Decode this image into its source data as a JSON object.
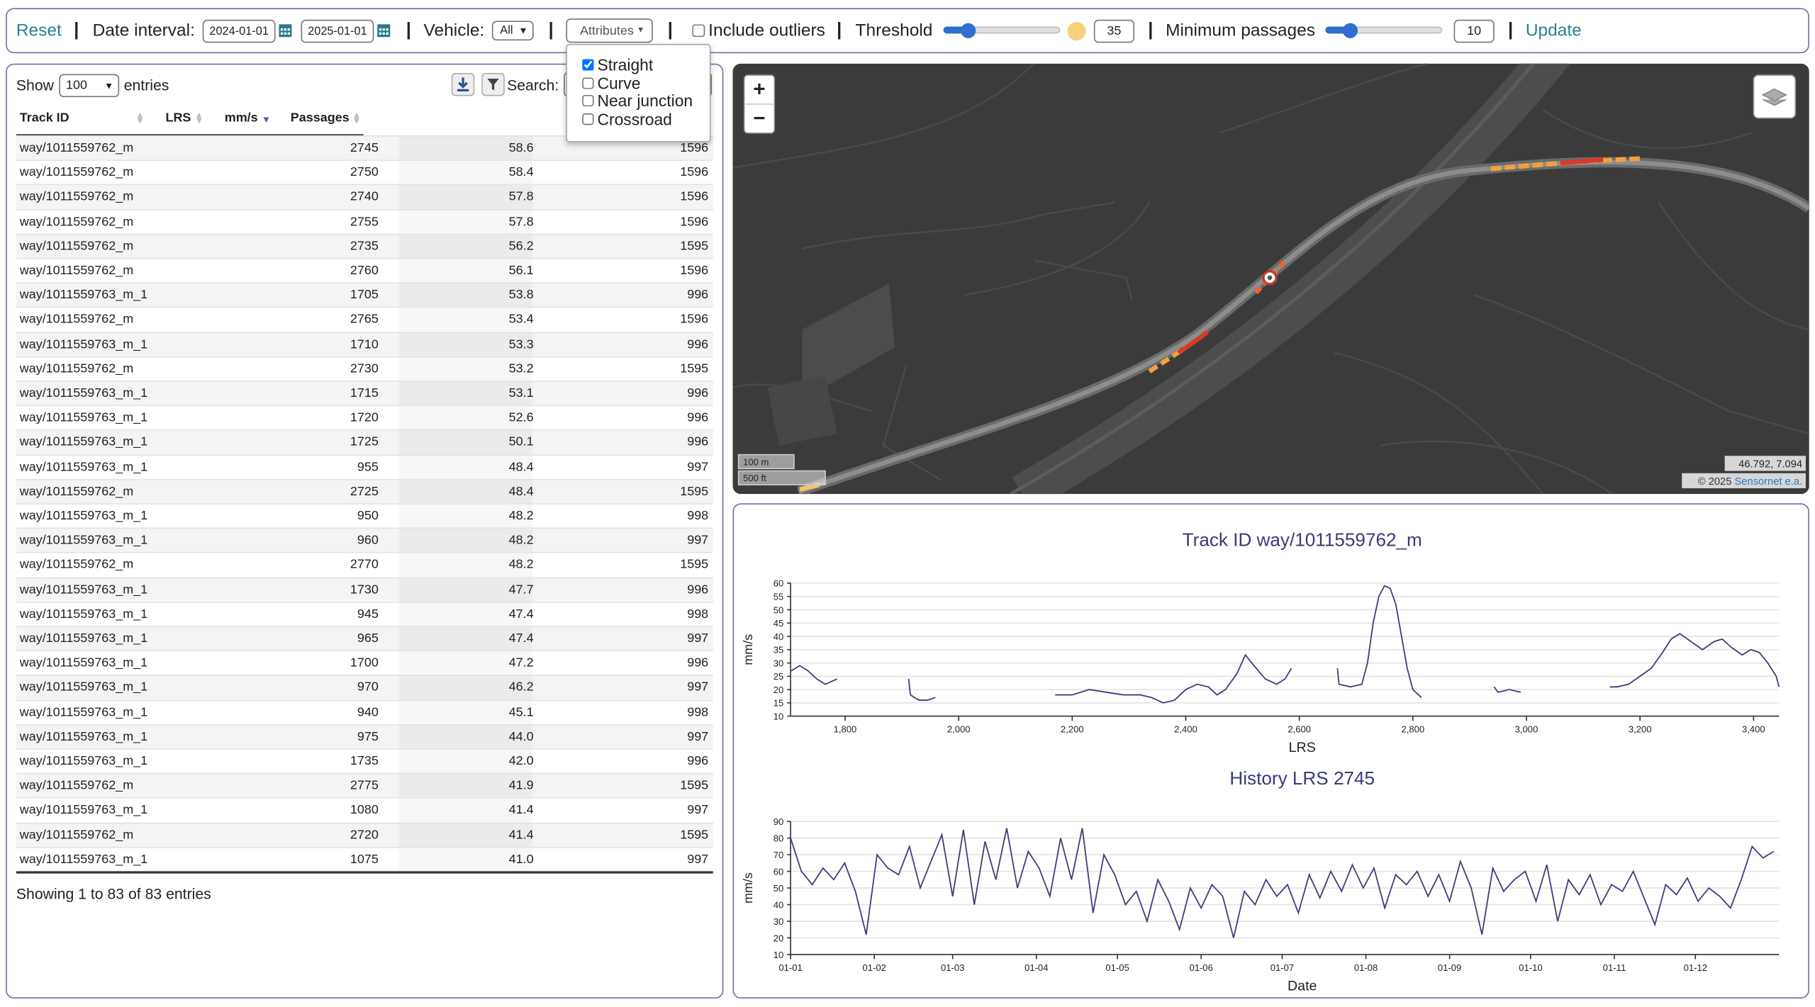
{
  "toolbar": {
    "reset": "Reset",
    "date_label": "Date interval:",
    "date_from": "2024-01-01",
    "date_to": "2025-01-01",
    "vehicle_label": "Vehicle:",
    "vehicle_value": "All",
    "attributes_button": "Attributes",
    "include_outliers": {
      "label": "Include outliers",
      "checked": false
    },
    "threshold_label": "Threshold",
    "threshold_value": "35",
    "min_passages_label": "Minimum passages",
    "min_passages_value": "10",
    "update": "Update"
  },
  "attributes_menu": {
    "options": [
      {
        "label": "Straight",
        "checked": true
      },
      {
        "label": "Curve",
        "checked": false
      },
      {
        "label": "Near junction",
        "checked": false
      },
      {
        "label": "Crossroad",
        "checked": false
      }
    ]
  },
  "table": {
    "show_label": "Show",
    "page_size": "100",
    "entries_label": "entries",
    "search_label": "Search:",
    "columns": [
      "Track ID",
      "LRS",
      "mm/s",
      "Passages"
    ],
    "rows": [
      [
        "way/1011559762_m",
        "2745",
        "58.6",
        "1596"
      ],
      [
        "way/1011559762_m",
        "2750",
        "58.4",
        "1596"
      ],
      [
        "way/1011559762_m",
        "2740",
        "57.8",
        "1596"
      ],
      [
        "way/1011559762_m",
        "2755",
        "57.8",
        "1596"
      ],
      [
        "way/1011559762_m",
        "2735",
        "56.2",
        "1595"
      ],
      [
        "way/1011559762_m",
        "2760",
        "56.1",
        "1596"
      ],
      [
        "way/1011559763_m_1",
        "1705",
        "53.8",
        "996"
      ],
      [
        "way/1011559762_m",
        "2765",
        "53.4",
        "1596"
      ],
      [
        "way/1011559763_m_1",
        "1710",
        "53.3",
        "996"
      ],
      [
        "way/1011559762_m",
        "2730",
        "53.2",
        "1595"
      ],
      [
        "way/1011559763_m_1",
        "1715",
        "53.1",
        "996"
      ],
      [
        "way/1011559763_m_1",
        "1720",
        "52.6",
        "996"
      ],
      [
        "way/1011559763_m_1",
        "1725",
        "50.1",
        "996"
      ],
      [
        "way/1011559763_m_1",
        "955",
        "48.4",
        "997"
      ],
      [
        "way/1011559762_m",
        "2725",
        "48.4",
        "1595"
      ],
      [
        "way/1011559763_m_1",
        "950",
        "48.2",
        "998"
      ],
      [
        "way/1011559763_m_1",
        "960",
        "48.2",
        "997"
      ],
      [
        "way/1011559762_m",
        "2770",
        "48.2",
        "1595"
      ],
      [
        "way/1011559763_m_1",
        "1730",
        "47.7",
        "996"
      ],
      [
        "way/1011559763_m_1",
        "945",
        "47.4",
        "998"
      ],
      [
        "way/1011559763_m_1",
        "965",
        "47.4",
        "997"
      ],
      [
        "way/1011559763_m_1",
        "1700",
        "47.2",
        "996"
      ],
      [
        "way/1011559763_m_1",
        "970",
        "46.2",
        "997"
      ],
      [
        "way/1011559763_m_1",
        "940",
        "45.1",
        "998"
      ],
      [
        "way/1011559763_m_1",
        "975",
        "44.0",
        "997"
      ],
      [
        "way/1011559763_m_1",
        "1735",
        "42.0",
        "996"
      ],
      [
        "way/1011559762_m",
        "2775",
        "41.9",
        "1595"
      ],
      [
        "way/1011559763_m_1",
        "1080",
        "41.4",
        "997"
      ],
      [
        "way/1011559762_m",
        "2720",
        "41.4",
        "1595"
      ],
      [
        "way/1011559763_m_1",
        "1075",
        "41.0",
        "997"
      ]
    ],
    "footer": "Showing 1 to 83 of 83 entries"
  },
  "map": {
    "zoom_in": "+",
    "zoom_out": "−",
    "scale_metric": "100 m",
    "scale_imperial": "500 ft",
    "coordinates": "46.792, 7.094",
    "attribution": "© 2025",
    "attribution_link": "Sensornet e.a."
  },
  "chart_data": [
    {
      "type": "line",
      "title": "Track ID way/1011559762_m",
      "x_label": "LRS",
      "y_label": "mm/s",
      "color": "#3d3d7e",
      "grid": true,
      "xlim": [
        1704,
        3445
      ],
      "ylim": [
        10,
        60
      ],
      "xticks": [
        {
          "value": 1800,
          "label": "1,800"
        },
        {
          "value": 2000,
          "label": "2,000"
        },
        {
          "value": 2200,
          "label": "2,200"
        },
        {
          "value": 2400,
          "label": "2,400"
        },
        {
          "value": 2600,
          "label": "2,600"
        },
        {
          "value": 2800,
          "label": "2,800"
        },
        {
          "value": 3000,
          "label": "3,000"
        },
        {
          "value": 3200,
          "label": "3,200"
        },
        {
          "value": 3400,
          "label": "3,400"
        }
      ],
      "yticks": [
        10,
        15,
        20,
        25,
        30,
        35,
        40,
        45,
        50,
        55,
        60
      ],
      "x": [
        1705,
        1720,
        1735,
        1750,
        1765,
        1786,
        1850,
        1912,
        1915,
        1930,
        1945,
        1959,
        2060,
        2170,
        2200,
        2230,
        2260,
        2290,
        2320,
        2340,
        2360,
        2380,
        2400,
        2420,
        2440,
        2455,
        2470,
        2490,
        2505,
        2520,
        2540,
        2560,
        2575,
        2586,
        2630,
        2667,
        2670,
        2690,
        2710,
        2720,
        2730,
        2740,
        2750,
        2760,
        2770,
        2780,
        2790,
        2800,
        2815,
        2880,
        2943,
        2950,
        2970,
        2990,
        3070,
        3147,
        3160,
        3180,
        3200,
        3220,
        3240,
        3255,
        3270,
        3290,
        3310,
        3330,
        3345,
        3360,
        3380,
        3395,
        3410,
        3425,
        3440,
        3445
      ],
      "values": [
        27,
        29,
        27,
        24,
        22,
        24,
        null,
        24,
        18,
        16,
        16,
        17,
        null,
        18,
        18,
        20,
        19,
        18,
        18,
        17,
        15,
        16,
        20,
        22,
        21,
        18,
        20,
        26,
        33,
        29,
        24,
        22,
        24,
        28,
        null,
        28,
        22,
        21,
        22,
        30,
        45,
        55,
        59,
        58,
        52,
        40,
        28,
        20,
        17,
        null,
        21,
        19,
        20,
        19,
        null,
        21,
        21,
        22,
        25,
        28,
        34,
        39,
        41,
        38,
        35,
        38,
        39,
        36,
        33,
        35,
        34,
        30,
        25,
        21
      ]
    },
    {
      "type": "line",
      "title": "History LRS 2745",
      "x_label": "Date",
      "y_label": "mm/s",
      "color": "#3d3d7e",
      "grid": true,
      "xlim": [
        0,
        366
      ],
      "ylim": [
        10,
        90
      ],
      "xticks": [
        {
          "value": 0,
          "label": "01-01"
        },
        {
          "value": 31,
          "label": "01-02"
        },
        {
          "value": 60,
          "label": "01-03"
        },
        {
          "value": 91,
          "label": "01-04"
        },
        {
          "value": 121,
          "label": "01-05"
        },
        {
          "value": 152,
          "label": "01-06"
        },
        {
          "value": 182,
          "label": "01-07"
        },
        {
          "value": 213,
          "label": "01-08"
        },
        {
          "value": 244,
          "label": "01-09"
        },
        {
          "value": 274,
          "label": "01-10"
        },
        {
          "value": 305,
          "label": "01-11"
        },
        {
          "value": 335,
          "label": "01-12"
        }
      ],
      "yticks": [
        10,
        20,
        30,
        40,
        50,
        60,
        70,
        80,
        90
      ],
      "x": [
        0,
        4,
        8,
        12,
        16,
        20,
        24,
        28,
        32,
        36,
        40,
        44,
        48,
        52,
        56,
        60,
        64,
        68,
        72,
        76,
        80,
        84,
        88,
        92,
        96,
        100,
        104,
        108,
        112,
        116,
        120,
        124,
        128,
        132,
        136,
        140,
        144,
        148,
        152,
        156,
        160,
        164,
        168,
        172,
        176,
        180,
        184,
        188,
        192,
        196,
        200,
        204,
        208,
        212,
        216,
        220,
        224,
        228,
        232,
        236,
        240,
        244,
        248,
        252,
        256,
        260,
        264,
        268,
        272,
        276,
        280,
        284,
        288,
        292,
        296,
        300,
        304,
        308,
        312,
        316,
        320,
        324,
        328,
        332,
        336,
        340,
        344,
        348,
        352,
        356,
        360,
        364
      ],
      "values": [
        80,
        60,
        52,
        62,
        55,
        65,
        48,
        22,
        70,
        62,
        58,
        75,
        50,
        66,
        82,
        45,
        85,
        40,
        78,
        55,
        86,
        50,
        72,
        62,
        45,
        80,
        55,
        86,
        35,
        70,
        58,
        40,
        48,
        30,
        55,
        42,
        25,
        50,
        38,
        52,
        45,
        20,
        48,
        40,
        55,
        45,
        52,
        35,
        58,
        44,
        60,
        48,
        64,
        50,
        62,
        38,
        58,
        52,
        60,
        45,
        58,
        42,
        66,
        50,
        22,
        62,
        48,
        55,
        60,
        42,
        64,
        30,
        55,
        46,
        58,
        40,
        52,
        48,
        60,
        44,
        28,
        52,
        46,
        56,
        42,
        50,
        45,
        38,
        55,
        75,
        68,
        72
      ]
    }
  ]
}
